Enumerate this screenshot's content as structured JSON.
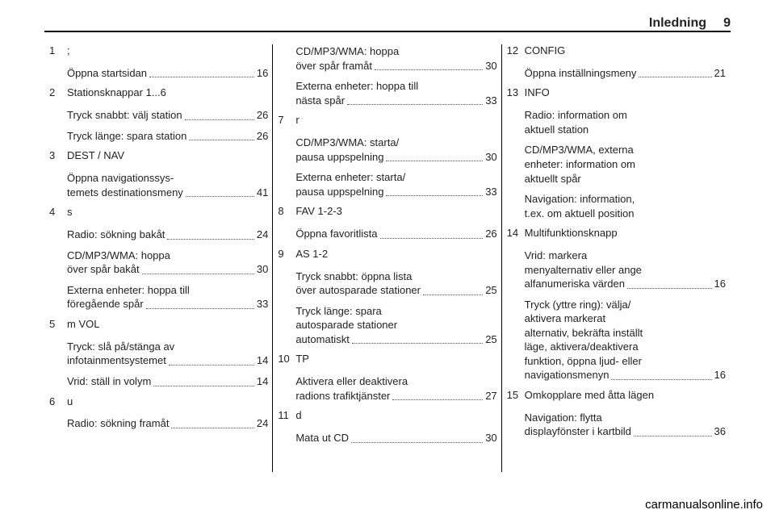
{
  "header": {
    "title": "Inledning",
    "page_number": "9"
  },
  "columns": [
    {
      "entries": [
        {
          "num": "1",
          "label": ";",
          "subs": [
            {
              "text": "Öppna startsidan",
              "page": "16"
            }
          ]
        },
        {
          "num": "2",
          "label": "Stationsknappar 1...6",
          "subs": [
            {
              "text": "Tryck snabbt: välj station",
              "page": "26"
            },
            {
              "text": "Tryck länge: spara station",
              "page": "26"
            }
          ]
        },
        {
          "num": "3",
          "label": "DEST / NAV",
          "subs": [
            {
              "text": "Öppna navigationssys-\ntemets destinationsmeny",
              "page": "41"
            }
          ]
        },
        {
          "num": "4",
          "label": "s",
          "subs": [
            {
              "text": "Radio: sökning bakåt",
              "page": "24"
            },
            {
              "text": "CD/MP3/WMA: hoppa\növer spår bakåt",
              "page": "30"
            },
            {
              "text": "Externa enheter: hoppa till\nföregående spår",
              "page": "33"
            }
          ]
        },
        {
          "num": "5",
          "label": "m VOL",
          "subs": [
            {
              "text": "Tryck: slå på/stänga av\ninfotainmentsystemet",
              "page": "14"
            },
            {
              "text": "Vrid: ställ in volym",
              "page": "14"
            }
          ]
        },
        {
          "num": "6",
          "label": "u",
          "subs": [
            {
              "text": "Radio: sökning framåt",
              "page": "24"
            }
          ]
        }
      ]
    },
    {
      "entries": [
        {
          "num": "",
          "label": "",
          "subs": [
            {
              "text": "CD/MP3/WMA: hoppa\növer spår framåt",
              "page": "30"
            },
            {
              "text": "Externa enheter: hoppa till\nnästa spår",
              "page": "33"
            }
          ]
        },
        {
          "num": "7",
          "label": "r",
          "subs": [
            {
              "text": "CD/MP3/WMA: starta/\npausa uppspelning",
              "page": "30"
            },
            {
              "text": "Externa enheter: starta/\npausa uppspelning",
              "page": "33"
            }
          ]
        },
        {
          "num": "8",
          "label": "FAV 1-2-3",
          "subs": [
            {
              "text": "Öppna favoritlista",
              "page": "26"
            }
          ]
        },
        {
          "num": "9",
          "label": "AS 1-2",
          "subs": [
            {
              "text": "Tryck snabbt: öppna lista\növer autosparade stationer",
              "page": "25"
            },
            {
              "text": "Tryck länge: spara\nautosparade stationer\nautomatiskt",
              "page": "25"
            }
          ]
        },
        {
          "num": "10",
          "label": "TP",
          "subs": [
            {
              "text": "Aktivera eller deaktivera\nradions trafiktjänster",
              "page": "27"
            }
          ]
        },
        {
          "num": "11",
          "label": "d",
          "subs": [
            {
              "text": "Mata ut CD",
              "page": "30"
            }
          ]
        }
      ]
    },
    {
      "entries": [
        {
          "num": "12",
          "label": "CONFIG",
          "subs": [
            {
              "text": "Öppna inställningsmeny",
              "page": "21"
            }
          ]
        },
        {
          "num": "13",
          "label": "INFO",
          "subs": [
            {
              "text": "Radio: information om\naktuell station",
              "page": ""
            },
            {
              "text": "CD/MP3/WMA, externa\nenheter: information om\naktuellt spår",
              "page": ""
            },
            {
              "text": "Navigation: information,\nt.ex. om aktuell position",
              "page": ""
            }
          ]
        },
        {
          "num": "14",
          "label": "Multifunktionsknapp",
          "subs": [
            {
              "text": "Vrid: markera\nmenyalternativ eller ange\nalfanumeriska värden",
              "page": "16"
            },
            {
              "text": "Tryck (yttre ring): välja/\naktivera markerat\nalternativ, bekräfta inställt\nläge, aktivera/deaktivera\nfunktion, öppna ljud- eller\nnavigationsmenyn",
              "page": "16"
            }
          ]
        },
        {
          "num": "15",
          "label": "Omkopplare med åtta lägen",
          "subs": [
            {
              "text": "Navigation: flytta\ndisplayfönster i kartbild",
              "page": "36"
            }
          ]
        }
      ]
    }
  ],
  "footer": {
    "domain": "carmanualsonline.info"
  }
}
